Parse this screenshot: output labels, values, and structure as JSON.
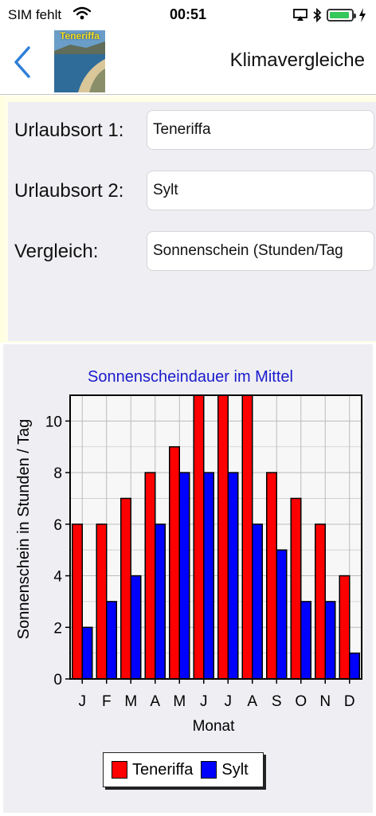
{
  "status": {
    "carrier": "SIM fehlt",
    "time": "00:51"
  },
  "nav": {
    "thumb_label": "Teneriffa",
    "title": "Klimavergleiche"
  },
  "form": {
    "rows": [
      {
        "label": "Urlaubsort 1:",
        "value": "Teneriffa"
      },
      {
        "label": "Urlaubsort 2:",
        "value": "Sylt"
      },
      {
        "label": "Vergleich:",
        "value": "Sonnenschein (Stunden/Tag"
      }
    ]
  },
  "colors": {
    "series1": "#ff0000",
    "series2": "#0000ff",
    "title": "#1a1acc",
    "accent": "#2f7fd8",
    "battery": "#34c759"
  },
  "chart_data": {
    "type": "bar",
    "title": "Sonnenscheindauer im Mittel",
    "xlabel": "Monat",
    "ylabel": "Sonnenschein in Stunden / Tag",
    "categories": [
      "J",
      "F",
      "M",
      "A",
      "M",
      "J",
      "J",
      "A",
      "S",
      "O",
      "N",
      "D"
    ],
    "ylim": [
      0,
      11
    ],
    "yticks": [
      0,
      2,
      4,
      6,
      8,
      10
    ],
    "grid": true,
    "legend_position": "bottom",
    "series": [
      {
        "name": "Teneriffa",
        "values": [
          6,
          6,
          7,
          8,
          9,
          11,
          11,
          11,
          8,
          7,
          6,
          4
        ]
      },
      {
        "name": "Sylt",
        "values": [
          2,
          3,
          4,
          6,
          8,
          8,
          8,
          6,
          5,
          3,
          3,
          1
        ]
      }
    ]
  }
}
